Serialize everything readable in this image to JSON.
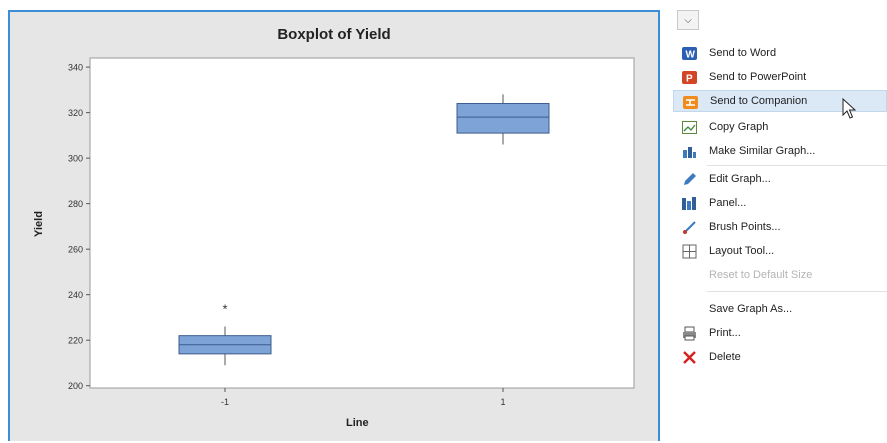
{
  "chart_data": {
    "type": "box",
    "title": "Boxplot of Yield",
    "xlabel": "Line",
    "ylabel": "Yield",
    "categories": [
      "-1",
      "1"
    ],
    "ylim": [
      199,
      344
    ],
    "yticks": [
      "340",
      "320",
      "300",
      "280",
      "260",
      "240",
      "220",
      "200"
    ],
    "ytick_values": [
      340,
      320,
      300,
      280,
      260,
      240,
      220,
      200
    ],
    "boxes": [
      {
        "category": "-1",
        "whisker_low": 209,
        "q1": 214,
        "median": 218,
        "q3": 222,
        "whisker_high": 226,
        "outliers": [
          234
        ]
      },
      {
        "category": "1",
        "whisker_low": 306,
        "q1": 311,
        "median": 318,
        "q3": 324,
        "whisker_high": 328,
        "outliers": []
      }
    ],
    "box_color": "#7ea3d6",
    "box_border": "#3b5d8c",
    "grid": false,
    "outlier_marker": "*"
  },
  "menu": {
    "items": [
      {
        "label": "Send to Word",
        "icon": "word-icon",
        "enabled": true
      },
      {
        "label": "Send to PowerPoint",
        "icon": "powerpoint-icon",
        "enabled": true
      },
      {
        "label": "Send to Companion",
        "icon": "companion-icon",
        "enabled": true,
        "highlighted": true
      },
      {
        "label": "Copy Graph",
        "icon": "copy-graph-icon",
        "enabled": true
      },
      {
        "label": "Make Similar Graph...",
        "icon": "similar-graph-icon",
        "enabled": true
      },
      {
        "label": "Edit Graph...",
        "icon": "pencil-icon",
        "enabled": true
      },
      {
        "label": "Panel...",
        "icon": "panel-icon",
        "enabled": true
      },
      {
        "label": "Brush Points...",
        "icon": "brush-icon",
        "enabled": true
      },
      {
        "label": "Layout Tool...",
        "icon": "layout-icon",
        "enabled": true
      },
      {
        "label": "Reset to Default Size",
        "icon": "",
        "enabled": false
      },
      {
        "label": "Save Graph As...",
        "icon": "",
        "enabled": true
      },
      {
        "label": "Print...",
        "icon": "printer-icon",
        "enabled": true
      },
      {
        "label": "Delete",
        "icon": "delete-x-icon",
        "enabled": true
      }
    ]
  },
  "colors": {
    "graph_border": "#3c8fd6",
    "graph_background": "#e6e6e6",
    "plot_background": "#ffffff",
    "menu_highlight": "#dbe8f6"
  }
}
